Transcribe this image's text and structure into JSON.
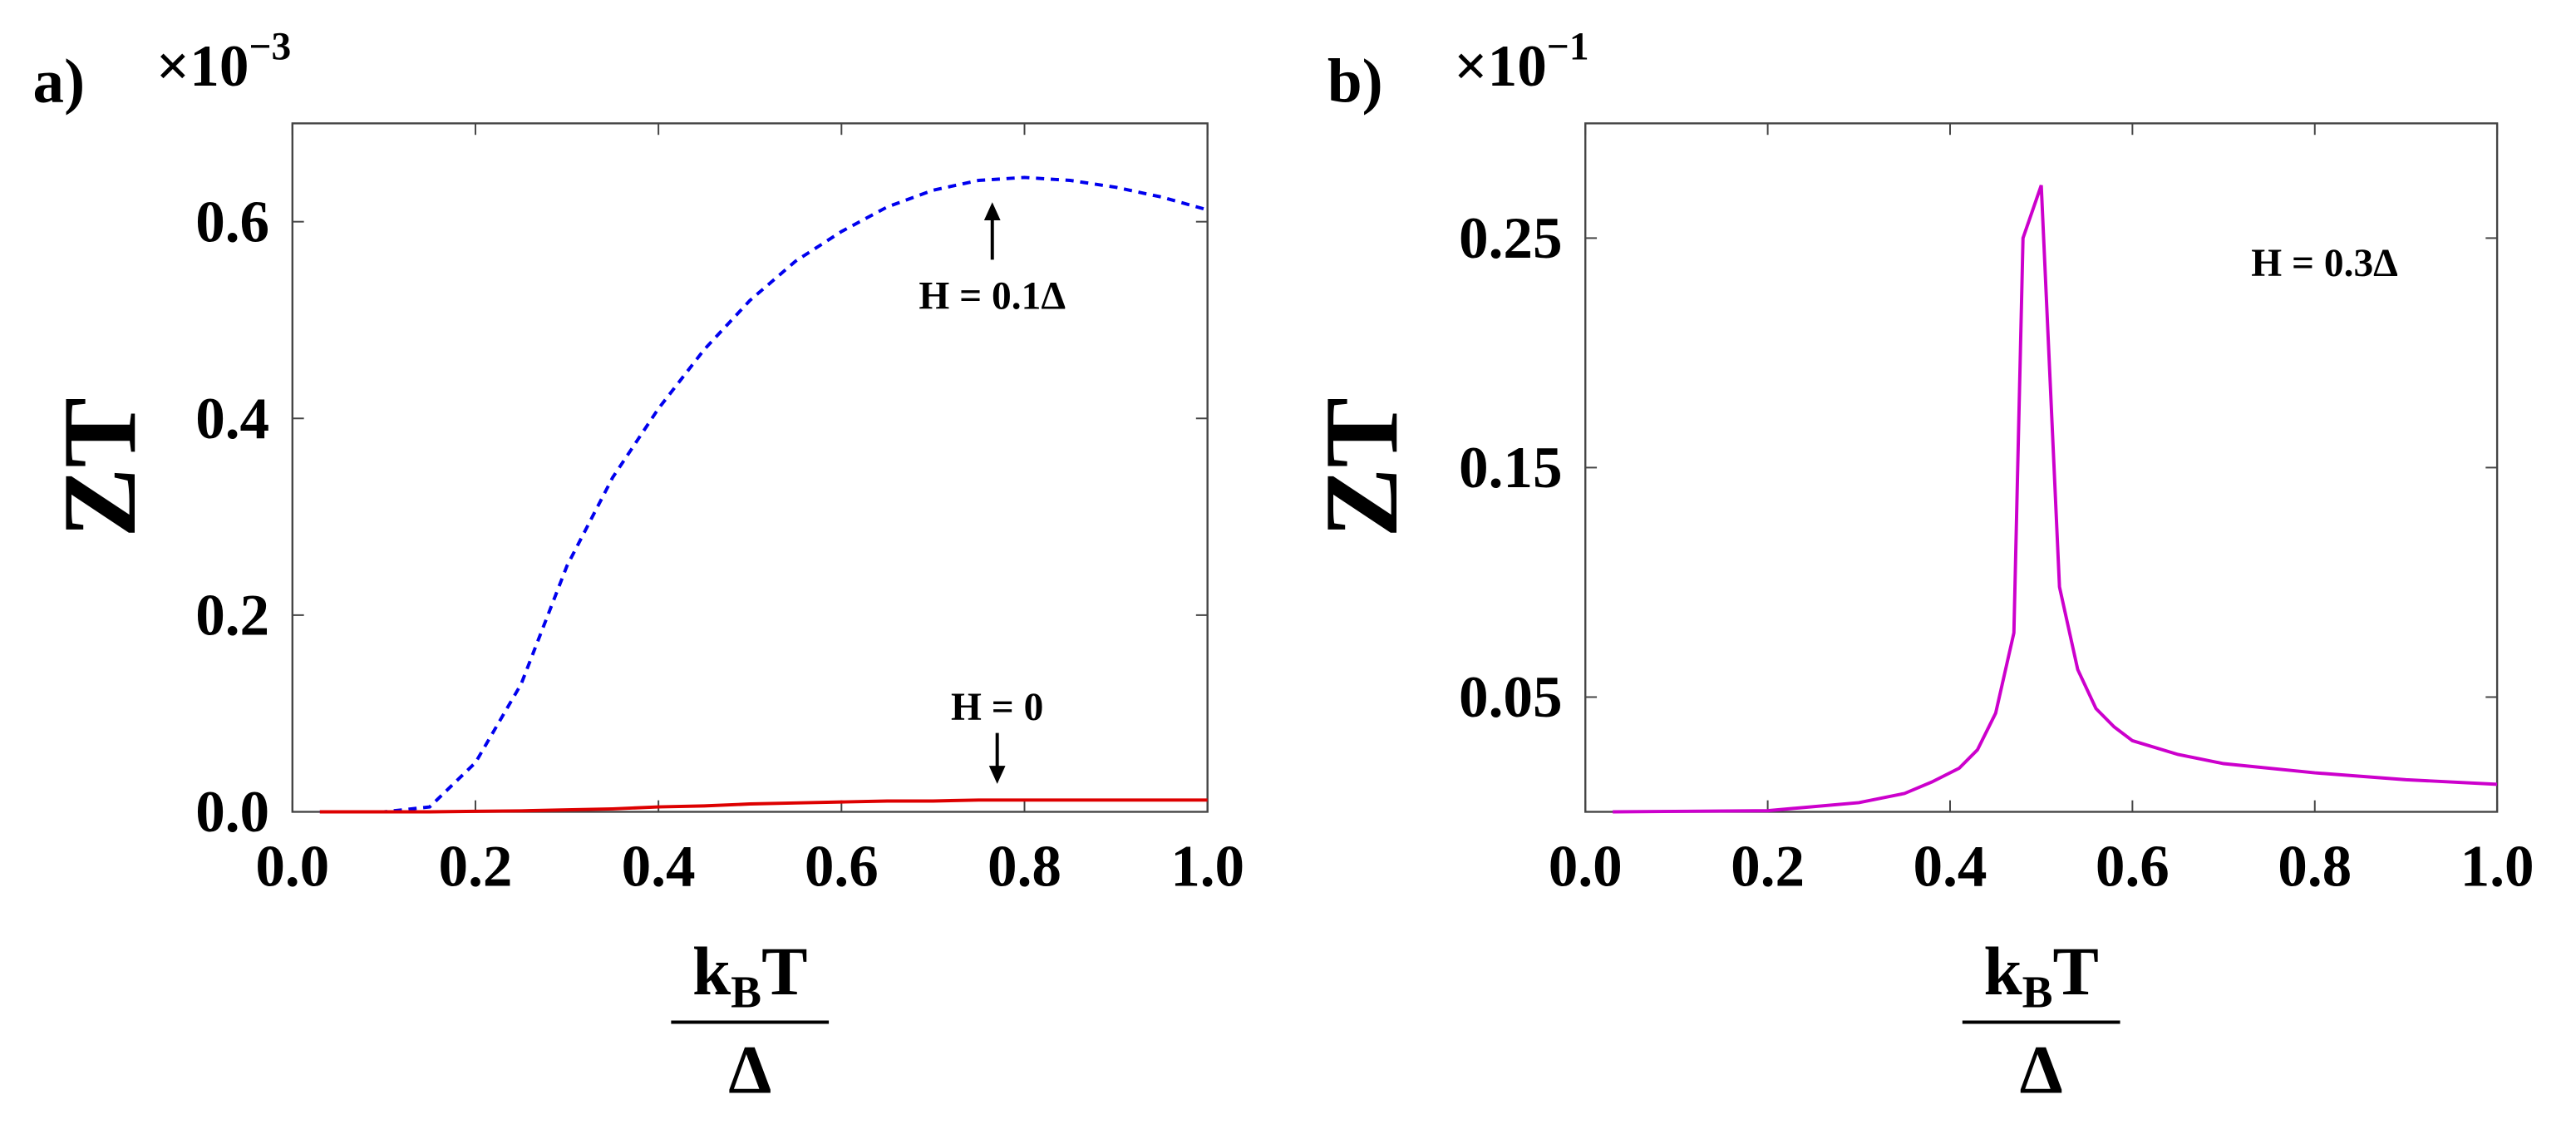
{
  "chart_data": [
    {
      "type": "line",
      "panel_label": "a)",
      "multiplier": {
        "base": "×10",
        "exponent": "−3"
      },
      "ylabel": "ZT",
      "xlabel": {
        "numerator": [
          "k",
          "B",
          "T"
        ],
        "denominator": "Δ"
      },
      "x": [
        0.03,
        0.1,
        0.15,
        0.2,
        0.25,
        0.3,
        0.35,
        0.4,
        0.45,
        0.5,
        0.55,
        0.6,
        0.65,
        0.7,
        0.75,
        0.8,
        0.85,
        0.9,
        0.95,
        1.0
      ],
      "series": [
        {
          "color": "#0000ee",
          "linestyle": "dashed",
          "values": [
            0,
            0,
            0.005,
            0.05,
            0.13,
            0.25,
            0.34,
            0.41,
            0.47,
            0.52,
            0.56,
            0.59,
            0.615,
            0.632,
            0.642,
            0.645,
            0.642,
            0.635,
            0.625,
            0.612
          ]
        },
        {
          "color": "#dd0000",
          "linestyle": "solid",
          "values": [
            0,
            0,
            0,
            0.0005,
            0.001,
            0.002,
            0.003,
            0.005,
            0.006,
            0.008,
            0.009,
            0.01,
            0.011,
            0.011,
            0.012,
            0.012,
            0.012,
            0.012,
            0.012,
            0.012
          ]
        }
      ],
      "annotations": [
        "H = 0.1Δ",
        "H = 0"
      ],
      "xlim": [
        0,
        1
      ],
      "ylim": [
        0,
        0.7
      ],
      "xticks": [
        {
          "value": 0,
          "label": "0.0"
        },
        0.2,
        0.4,
        0.6,
        0.8,
        {
          "value": 1,
          "label": "1.0"
        }
      ],
      "yticks": [
        {
          "value": 0,
          "label": "0.0"
        },
        0.2,
        0.4,
        0.6
      ]
    },
    {
      "type": "line",
      "panel_label": "b)",
      "multiplier": {
        "base": "×10",
        "exponent": "−1"
      },
      "ylabel": "ZT",
      "xlabel": {
        "numerator": [
          "k",
          "B",
          "T"
        ],
        "denominator": "Δ"
      },
      "x": [
        0.03,
        0.2,
        0.3,
        0.35,
        0.38,
        0.41,
        0.43,
        0.45,
        0.47,
        0.48,
        0.5,
        0.52,
        0.54,
        0.56,
        0.58,
        0.6,
        0.65,
        0.7,
        0.8,
        0.9,
        1.0
      ],
      "series": [
        {
          "color": "#cc00cc",
          "linestyle": "solid",
          "values": [
            0,
            0.0005,
            0.004,
            0.008,
            0.013,
            0.019,
            0.027,
            0.043,
            0.078,
            0.25,
            0.273,
            0.098,
            0.062,
            0.045,
            0.037,
            0.031,
            0.025,
            0.021,
            0.017,
            0.014,
            0.012
          ]
        }
      ],
      "annotations": [
        "H = 0.3Δ"
      ],
      "xlim": [
        0,
        1
      ],
      "ylim": [
        0,
        0.3
      ],
      "xticks": [
        {
          "value": 0,
          "label": "0.0"
        },
        0.2,
        0.4,
        0.6,
        0.8,
        {
          "value": 1,
          "label": "1.0"
        }
      ],
      "yticks": [
        0.05,
        0.15,
        0.25
      ]
    }
  ]
}
